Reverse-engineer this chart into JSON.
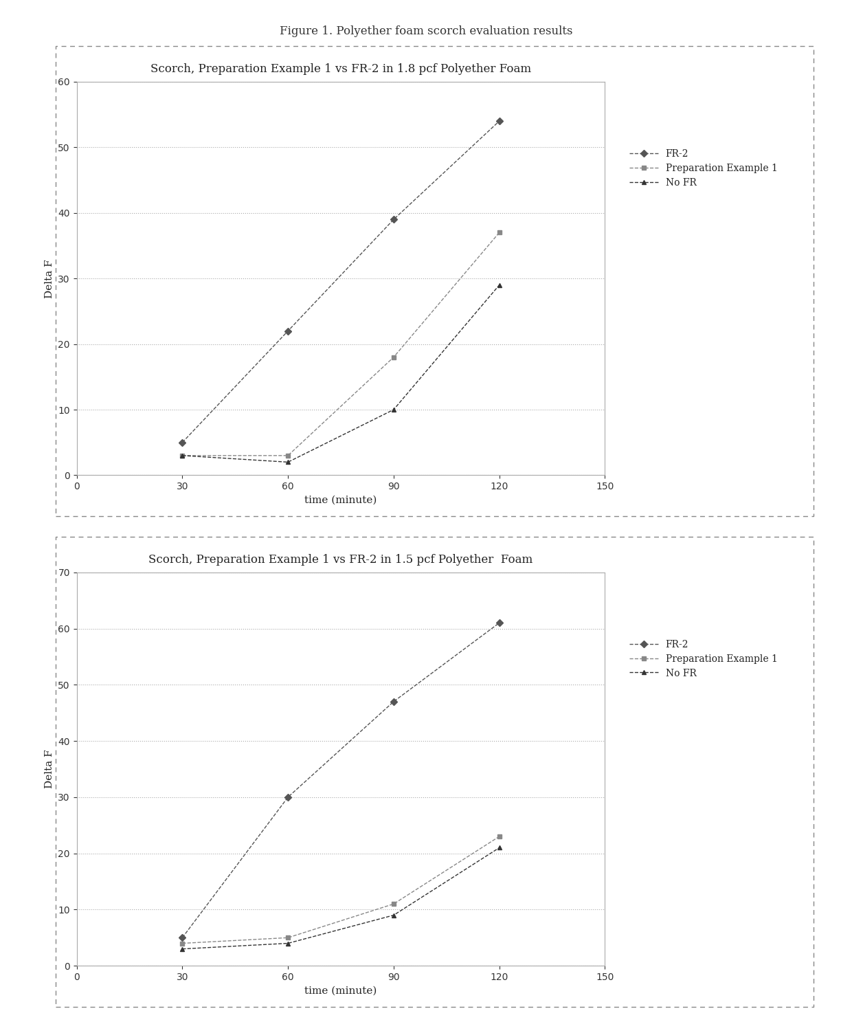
{
  "figure_title": "Figure 1. Polyether foam scorch evaluation results",
  "chart1": {
    "title": "Scorch, Preparation Example 1 vs FR-2 in 1.8 pcf Polyether Foam",
    "xlabel": "time (minute)",
    "ylabel": "Delta F",
    "xlim": [
      0,
      150
    ],
    "ylim": [
      0,
      60
    ],
    "xticks": [
      0,
      30,
      60,
      90,
      120,
      150
    ],
    "yticks": [
      0,
      10,
      20,
      30,
      40,
      50,
      60
    ],
    "series": [
      {
        "label": "FR-2",
        "x": [
          30,
          60,
          90,
          120
        ],
        "y": [
          5,
          22,
          39,
          54
        ],
        "color": "#555555",
        "marker": "D",
        "linestyle": "--"
      },
      {
        "label": "Preparation Example 1",
        "x": [
          30,
          60,
          90,
          120
        ],
        "y": [
          3,
          3,
          18,
          37
        ],
        "color": "#888888",
        "marker": "s",
        "linestyle": "--"
      },
      {
        "label": "No FR",
        "x": [
          30,
          60,
          90,
          120
        ],
        "y": [
          3,
          2,
          10,
          29
        ],
        "color": "#333333",
        "marker": "^",
        "linestyle": "--"
      }
    ]
  },
  "chart2": {
    "title": "Scorch, Preparation Example 1 vs FR-2 in 1.5 pcf Polyether  Foam",
    "xlabel": "time (minute)",
    "ylabel": "Delta F",
    "xlim": [
      0,
      150
    ],
    "ylim": [
      0,
      70
    ],
    "xticks": [
      0,
      30,
      60,
      90,
      120,
      150
    ],
    "yticks": [
      0,
      10,
      20,
      30,
      40,
      50,
      60,
      70
    ],
    "series": [
      {
        "label": "FR-2",
        "x": [
          30,
          60,
          90,
          120
        ],
        "y": [
          5,
          30,
          47,
          61
        ],
        "color": "#555555",
        "marker": "D",
        "linestyle": "--"
      },
      {
        "label": "Preparation Example 1",
        "x": [
          30,
          60,
          90,
          120
        ],
        "y": [
          4,
          5,
          11,
          23
        ],
        "color": "#888888",
        "marker": "s",
        "linestyle": "--"
      },
      {
        "label": "No FR",
        "x": [
          30,
          60,
          90,
          120
        ],
        "y": [
          3,
          4,
          9,
          21
        ],
        "color": "#333333",
        "marker": "^",
        "linestyle": "--"
      }
    ]
  },
  "background_color": "#ffffff",
  "figure_title_fontsize": 12,
  "chart_title_fontsize": 12,
  "axis_label_fontsize": 11,
  "tick_fontsize": 10,
  "legend_fontsize": 10
}
